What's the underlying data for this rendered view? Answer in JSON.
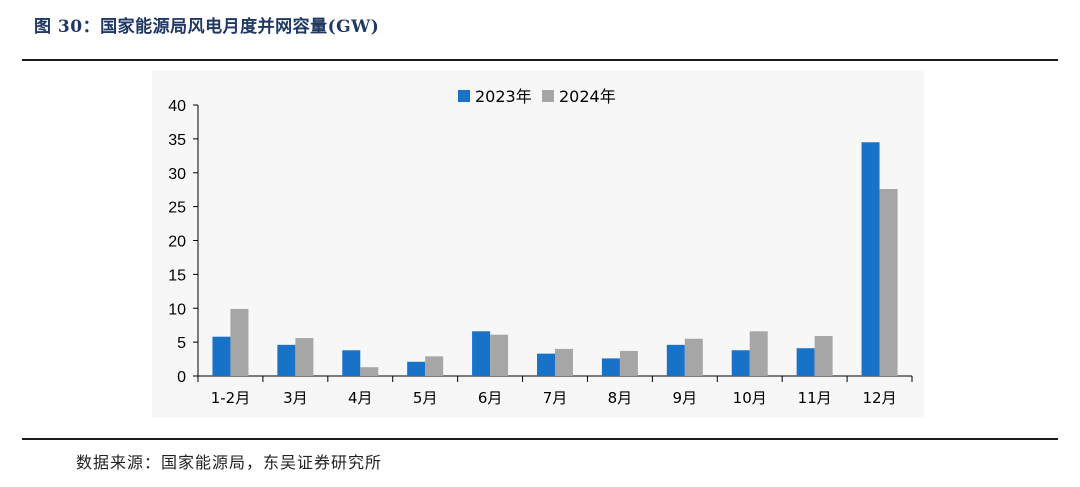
{
  "figure": {
    "title": "图 30：国家能源局风电月度并网容量(GW)",
    "source": "数据来源：国家能源局，东吴证券研究所"
  },
  "colors": {
    "series_2023": "#1872c8",
    "series_2024": "#a6a6a6",
    "title": "#1f3864"
  },
  "chart_data": {
    "type": "bar",
    "categories": [
      "1-2月",
      "3月",
      "4月",
      "5月",
      "6月",
      "7月",
      "8月",
      "9月",
      "10月",
      "11月",
      "12月"
    ],
    "series": [
      {
        "name": "2023年",
        "values": [
          5.8,
          4.6,
          3.8,
          2.1,
          6.6,
          3.3,
          2.6,
          4.6,
          3.8,
          4.1,
          34.5
        ]
      },
      {
        "name": "2024年",
        "values": [
          9.9,
          5.6,
          1.3,
          2.9,
          6.1,
          4.0,
          3.7,
          5.5,
          6.6,
          5.9,
          27.6
        ]
      }
    ],
    "y_ticks": [
      "0",
      "5",
      "10",
      "15",
      "20",
      "25",
      "30",
      "35",
      "40"
    ],
    "ylim": [
      0,
      40
    ],
    "legend_position": "top",
    "grid": false
  }
}
